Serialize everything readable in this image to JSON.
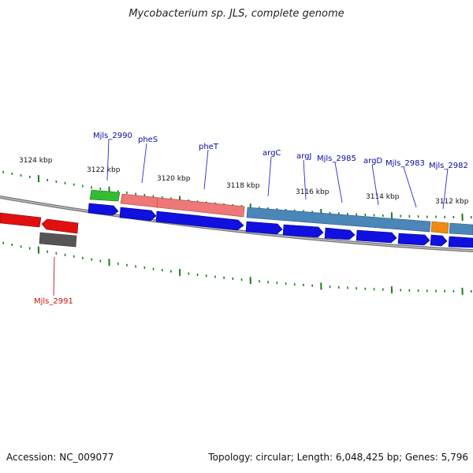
{
  "title": "Mycobacterium sp. JLS, complete genome",
  "footer": {
    "accession": "Accession: NC_009077",
    "summary": "Topology: circular; Length: 6,048,425 bp; Genes: 5,796"
  },
  "colors": {
    "backbone": "#808080",
    "tick": "#1f7a1f",
    "cds_forward": "#1010e0",
    "cds_reverse": "#e01010",
    "gene_label_blue": "#0a0aa0",
    "gene_label_red": "#cc1010"
  },
  "scale_labels": [
    "3124 kbp",
    "3122 kbp",
    "3120 kbp",
    "3118 kbp",
    "3116 kbp",
    "3114 kbp",
    "3112 kbp"
  ],
  "gene_labels_top": [
    "Mjls_2990",
    "pheS",
    "pheT",
    "argC",
    "argJ",
    "Mjls_2985",
    "argD",
    "Mjls_2983",
    "Mjls_2982"
  ],
  "gene_labels_bottom": [
    "Mjls_2991"
  ],
  "feature_tracks": {
    "upper": [
      {
        "name": "green",
        "color": "#33bb33"
      },
      {
        "name": "salmon",
        "color": "#ee7777"
      },
      {
        "name": "steelblue",
        "color": "#4a86b8"
      },
      {
        "name": "orange",
        "color": "#f08a10"
      }
    ]
  }
}
